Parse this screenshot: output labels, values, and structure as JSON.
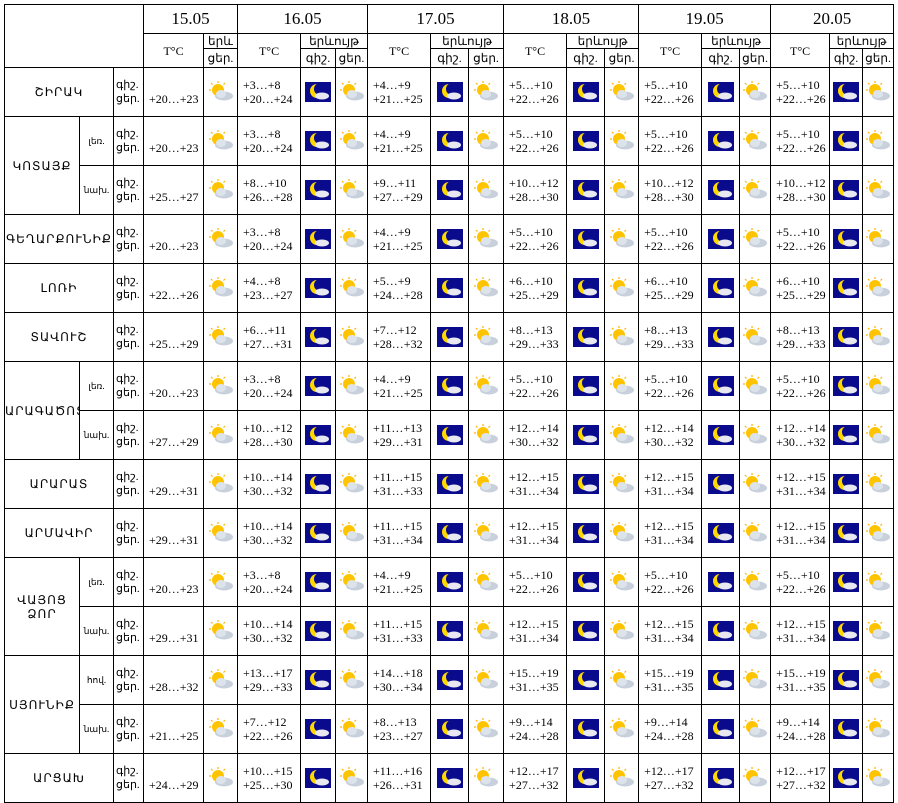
{
  "header": {
    "dates": [
      "15.05",
      "16.05",
      "17.05",
      "18.05",
      "19.05",
      "20.05"
    ],
    "temp_label": "T°C",
    "phenomenon_short": "երև",
    "phenomenon": "երևույթ",
    "night": "գիշ.",
    "day": "ցեր."
  },
  "regions": [
    {
      "name": "ՇԻՐԱԿ",
      "zones": [
        {
          "temps": [
            [
              "+20…+23"
            ],
            [
              "+3…+8",
              "+20…+24"
            ],
            [
              "+4…+9",
              "+21…+25"
            ],
            [
              "+5…+10",
              "+22…+26"
            ],
            [
              "+5…+10",
              "+22…+26"
            ],
            [
              "+5…+10",
              "+22…+26"
            ]
          ]
        }
      ]
    },
    {
      "name": "ԿՈՏԱՅՔ",
      "zones": [
        {
          "zone": "լեռ.",
          "temps": [
            [
              "+20…+23"
            ],
            [
              "+3…+8",
              "+20…+24"
            ],
            [
              "+4…+9",
              "+21…+25"
            ],
            [
              "+5…+10",
              "+22…+26"
            ],
            [
              "+5…+10",
              "+22…+26"
            ],
            [
              "+5…+10",
              "+22…+26"
            ]
          ]
        },
        {
          "zone": "նախ.",
          "temps": [
            [
              "+25…+27"
            ],
            [
              "+8…+10",
              "+26…+28"
            ],
            [
              "+9…+11",
              "+27…+29"
            ],
            [
              "+10…+12",
              "+28…+30"
            ],
            [
              "+10…+12",
              "+28…+30"
            ],
            [
              "+10…+12",
              "+28…+30"
            ]
          ]
        }
      ]
    },
    {
      "name": "ԳԵՂԱՐՔՈՒՆԻՔ",
      "zones": [
        {
          "temps": [
            [
              "+20…+23"
            ],
            [
              "+3…+8",
              "+20…+24"
            ],
            [
              "+4…+9",
              "+21…+25"
            ],
            [
              "+5…+10",
              "+22…+26"
            ],
            [
              "+5…+10",
              "+22…+26"
            ],
            [
              "+5…+10",
              "+22…+26"
            ]
          ]
        }
      ]
    },
    {
      "name": "ԼՈՌԻ",
      "zones": [
        {
          "temps": [
            [
              "+22…+26"
            ],
            [
              "+4…+8",
              "+23…+27"
            ],
            [
              "+5…+9",
              "+24…+28"
            ],
            [
              "+6…+10",
              "+25…+29"
            ],
            [
              "+6…+10",
              "+25…+29"
            ],
            [
              "+6…+10",
              "+25…+29"
            ]
          ]
        }
      ]
    },
    {
      "name": "ՏԱՎՈՒՇ",
      "zones": [
        {
          "temps": [
            [
              "+25…+29"
            ],
            [
              "+6…+11",
              "+27…+31"
            ],
            [
              "+7…+12",
              "+28…+32"
            ],
            [
              "+8…+13",
              "+29…+33"
            ],
            [
              "+8…+13",
              "+29…+33"
            ],
            [
              "+8…+13",
              "+29…+33"
            ]
          ]
        }
      ]
    },
    {
      "name": "ԱՐԱԳԱԾՈՏՆ",
      "zones": [
        {
          "zone": "լեռ.",
          "temps": [
            [
              "+20…+23"
            ],
            [
              "+3…+8",
              "+20…+24"
            ],
            [
              "+4…+9",
              "+21…+25"
            ],
            [
              "+5…+10",
              "+22…+26"
            ],
            [
              "+5…+10",
              "+22…+26"
            ],
            [
              "+5…+10",
              "+22…+26"
            ]
          ]
        },
        {
          "zone": "նախ.",
          "temps": [
            [
              "+27…+29"
            ],
            [
              "+10…+12",
              "+28…+30"
            ],
            [
              "+11…+13",
              "+29…+31"
            ],
            [
              "+12…+14",
              "+30…+32"
            ],
            [
              "+12…+14",
              "+30…+32"
            ],
            [
              "+12…+14",
              "+30…+32"
            ]
          ]
        }
      ]
    },
    {
      "name": "ԱՐԱՐԱՏ",
      "zones": [
        {
          "temps": [
            [
              "+29…+31"
            ],
            [
              "+10…+14",
              "+30…+32"
            ],
            [
              "+11…+15",
              "+31…+33"
            ],
            [
              "+12…+15",
              "+31…+34"
            ],
            [
              "+12…+15",
              "+31…+34"
            ],
            [
              "+12…+15",
              "+31…+34"
            ]
          ]
        }
      ]
    },
    {
      "name": "ԱՐՄԱՎԻՐ",
      "zones": [
        {
          "temps": [
            [
              "+29…+31"
            ],
            [
              "+10…+14",
              "+30…+32"
            ],
            [
              "+11…+15",
              "+31…+34"
            ],
            [
              "+12…+15",
              "+31…+34"
            ],
            [
              "+12…+15",
              "+31…+34"
            ],
            [
              "+12…+15",
              "+31…+34"
            ]
          ]
        }
      ]
    },
    {
      "name": "ՎԱՅՈՑ ՁՈՐ",
      "zones": [
        {
          "zone": "լեռ.",
          "temps": [
            [
              "+20…+23"
            ],
            [
              "+3…+8",
              "+20…+24"
            ],
            [
              "+4…+9",
              "+21…+25"
            ],
            [
              "+5…+10",
              "+22…+26"
            ],
            [
              "+5…+10",
              "+22…+26"
            ],
            [
              "+5…+10",
              "+22…+26"
            ]
          ]
        },
        {
          "zone": "նախ.",
          "temps": [
            [
              "+29…+31"
            ],
            [
              "+10…+14",
              "+30…+32"
            ],
            [
              "+11…+15",
              "+31…+33"
            ],
            [
              "+12…+15",
              "+31…+34"
            ],
            [
              "+12…+15",
              "+31…+34"
            ],
            [
              "+12…+15",
              "+31…+34"
            ]
          ]
        }
      ]
    },
    {
      "name": "ՍՅՈՒՆԻՔ",
      "zones": [
        {
          "zone": "հով.",
          "temps": [
            [
              "+28…+32"
            ],
            [
              "+13…+17",
              "+29…+33"
            ],
            [
              "+14…+18",
              "+30…+34"
            ],
            [
              "+15…+19",
              "+31…+35"
            ],
            [
              "+15…+19",
              "+31…+35"
            ],
            [
              "+15…+19",
              "+31…+35"
            ]
          ]
        },
        {
          "zone": "նախ.",
          "temps": [
            [
              "+21…+25"
            ],
            [
              "+7…+12",
              "+22…+26"
            ],
            [
              "+8…+13",
              "+23…+27"
            ],
            [
              "+9…+14",
              "+24…+28"
            ],
            [
              "+9…+14",
              "+24…+28"
            ],
            [
              "+9…+14",
              "+24…+28"
            ]
          ]
        }
      ]
    },
    {
      "name": "ԱՐՑԱԽ",
      "zones": [
        {
          "temps": [
            [
              "+24…+29"
            ],
            [
              "+10…+15",
              "+25…+30"
            ],
            [
              "+11…+16",
              "+26…+31"
            ],
            [
              "+12…+17",
              "+27…+32"
            ],
            [
              "+12…+17",
              "+27…+32"
            ],
            [
              "+12…+17",
              "+27…+32"
            ]
          ]
        }
      ]
    }
  ]
}
